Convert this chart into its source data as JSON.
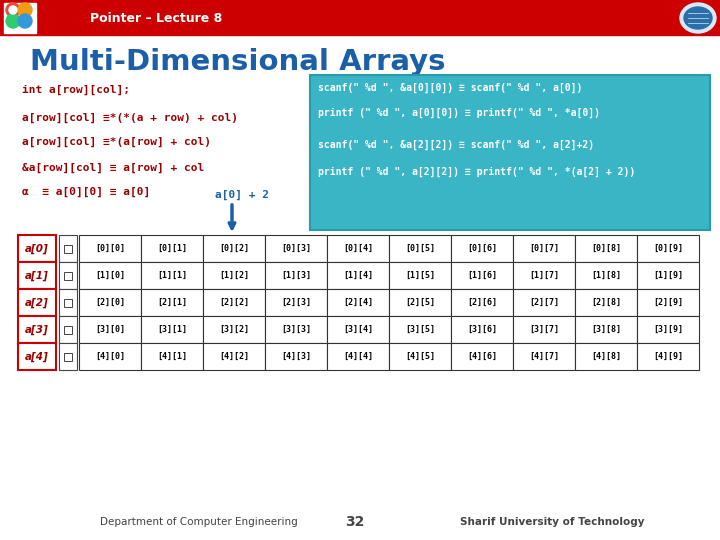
{
  "title_bar_text": "Pointer – Lecture 8",
  "title_bar_color": "#cc0000",
  "main_title": "Multi-Dimensional Arrays",
  "main_title_color": "#1a5fa8",
  "bg_color": "#ffffff",
  "left_lines": [
    "int a[row][col];",
    "a[row][col] ≡*(*(a + row) + col)",
    "a[row][col] ≡*(a[row] + col)",
    "&a[row][col] ≡ a[row] + col",
    "α  ≡ a[0][0] ≡ a[0]"
  ],
  "left_lines_color": "#990000",
  "box_color": "#3ab5c6",
  "box_lines": [
    "scanf(\" %d \", &a[0][0]) ≡ scanf(\" %d \", a[0])",
    "printf (\" %d \", a[0][0]) ≡ printf(\" %d \", *a[0])",
    "scanf(\" %d \", &a[2][2]) ≡ scanf(\" %d \", a[2]+2)",
    "printf (\" %d \", a[2][2]) ≡ printf(\" %d \", *(a[2] + 2))"
  ],
  "box_text_color": "#ffffff",
  "arrow_label": "a[0] + 2",
  "arrow_color": "#1a5fa8",
  "row_labels": [
    "a[0]",
    "a[1]",
    "a[2]",
    "a[3]",
    "a[4]"
  ],
  "row_label_color": "#990000",
  "num_rows": 5,
  "num_cols": 10,
  "footer_left": "Department of Computer Engineering",
  "footer_center": "32",
  "footer_right": "Sharif University of Technology",
  "footer_color": "#444444"
}
